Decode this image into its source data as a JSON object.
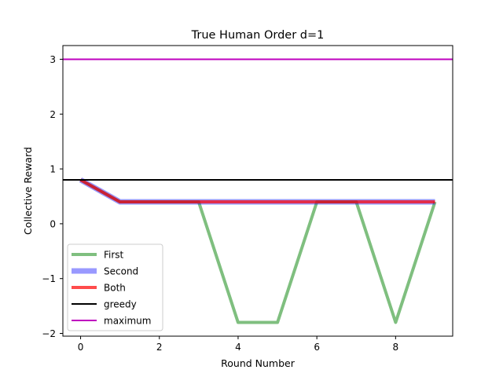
{
  "chart_data": {
    "type": "line",
    "title": "True Human Order d=1",
    "xlabel": "Round Number",
    "ylabel": "Collective Reward",
    "xlim": [
      -0.45,
      9.45
    ],
    "ylim": [
      -2.05,
      3.25
    ],
    "xticks": [
      0,
      2,
      4,
      6,
      8
    ],
    "yticks": [
      -2,
      -1,
      0,
      1,
      2,
      3
    ],
    "ytick_labels": [
      "−2",
      "−1",
      "0",
      "1",
      "2",
      "3"
    ],
    "x": [
      0,
      1,
      2,
      3,
      4,
      5,
      6,
      7,
      8,
      9
    ],
    "series": [
      {
        "name": "First",
        "color": "#008000",
        "opacity": 0.5,
        "width": 4,
        "values": [
          0.8,
          0.4,
          0.4,
          0.4,
          -1.8,
          -1.8,
          0.4,
          0.4,
          -1.8,
          0.4
        ]
      },
      {
        "name": "Second",
        "color": "#0000ff",
        "opacity": 0.4,
        "width": 7,
        "values": [
          0.8,
          0.4,
          0.4,
          0.4,
          0.4,
          0.4,
          0.4,
          0.4,
          0.4,
          0.4
        ]
      },
      {
        "name": "Both",
        "color": "#ff0000",
        "opacity": 0.7,
        "width": 4,
        "values": [
          0.8,
          0.4,
          0.4,
          0.4,
          0.4,
          0.4,
          0.4,
          0.4,
          0.4,
          0.4
        ]
      }
    ],
    "hlines": [
      {
        "name": "greedy",
        "color": "#000000",
        "width": 2,
        "y": 0.8
      },
      {
        "name": "maximum",
        "color": "#bf00bf",
        "width": 2,
        "y": 3.0
      }
    ],
    "legend_position": "lower-left",
    "grid": false
  }
}
